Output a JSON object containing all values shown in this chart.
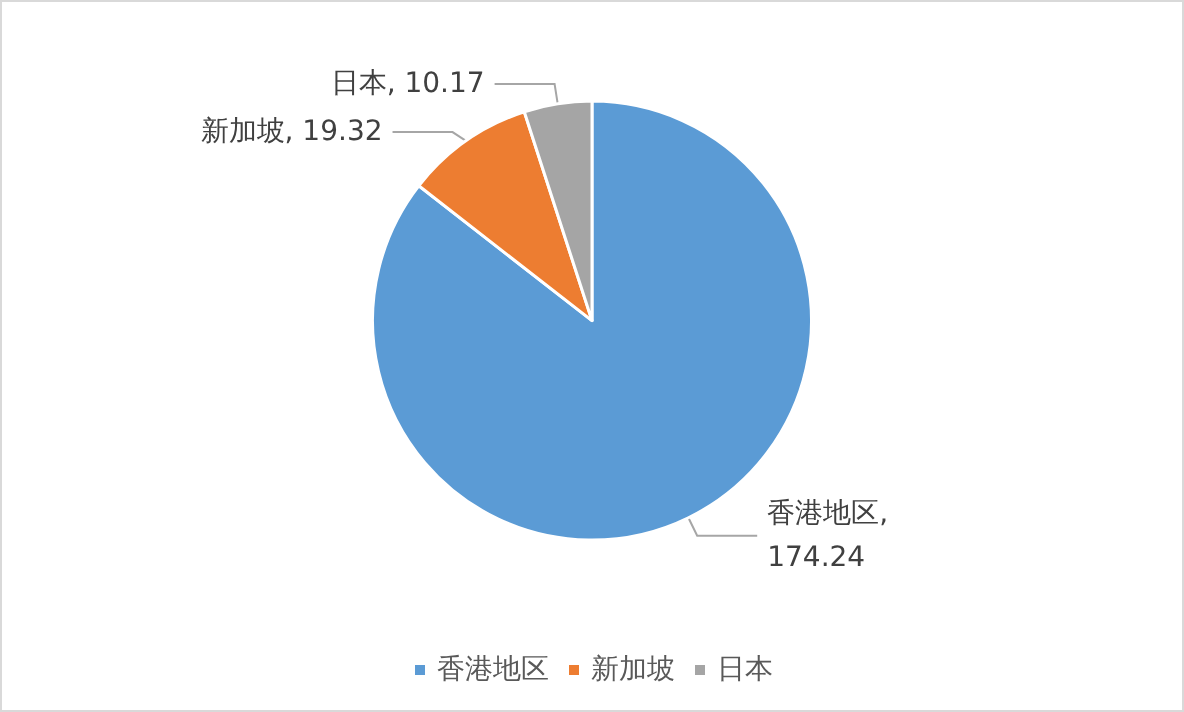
{
  "chart_data": {
    "type": "pie",
    "categories": [
      "香港地区",
      "新加坡",
      "日本"
    ],
    "values": [
      174.24,
      19.32,
      10.17
    ],
    "colors": [
      "#5b9bd5",
      "#ed7d31",
      "#a5a5a5"
    ],
    "value_labels": [
      "香港地区, 174.24",
      "新加坡, 19.32",
      "日本, 10.17"
    ],
    "legend": "bottom"
  }
}
